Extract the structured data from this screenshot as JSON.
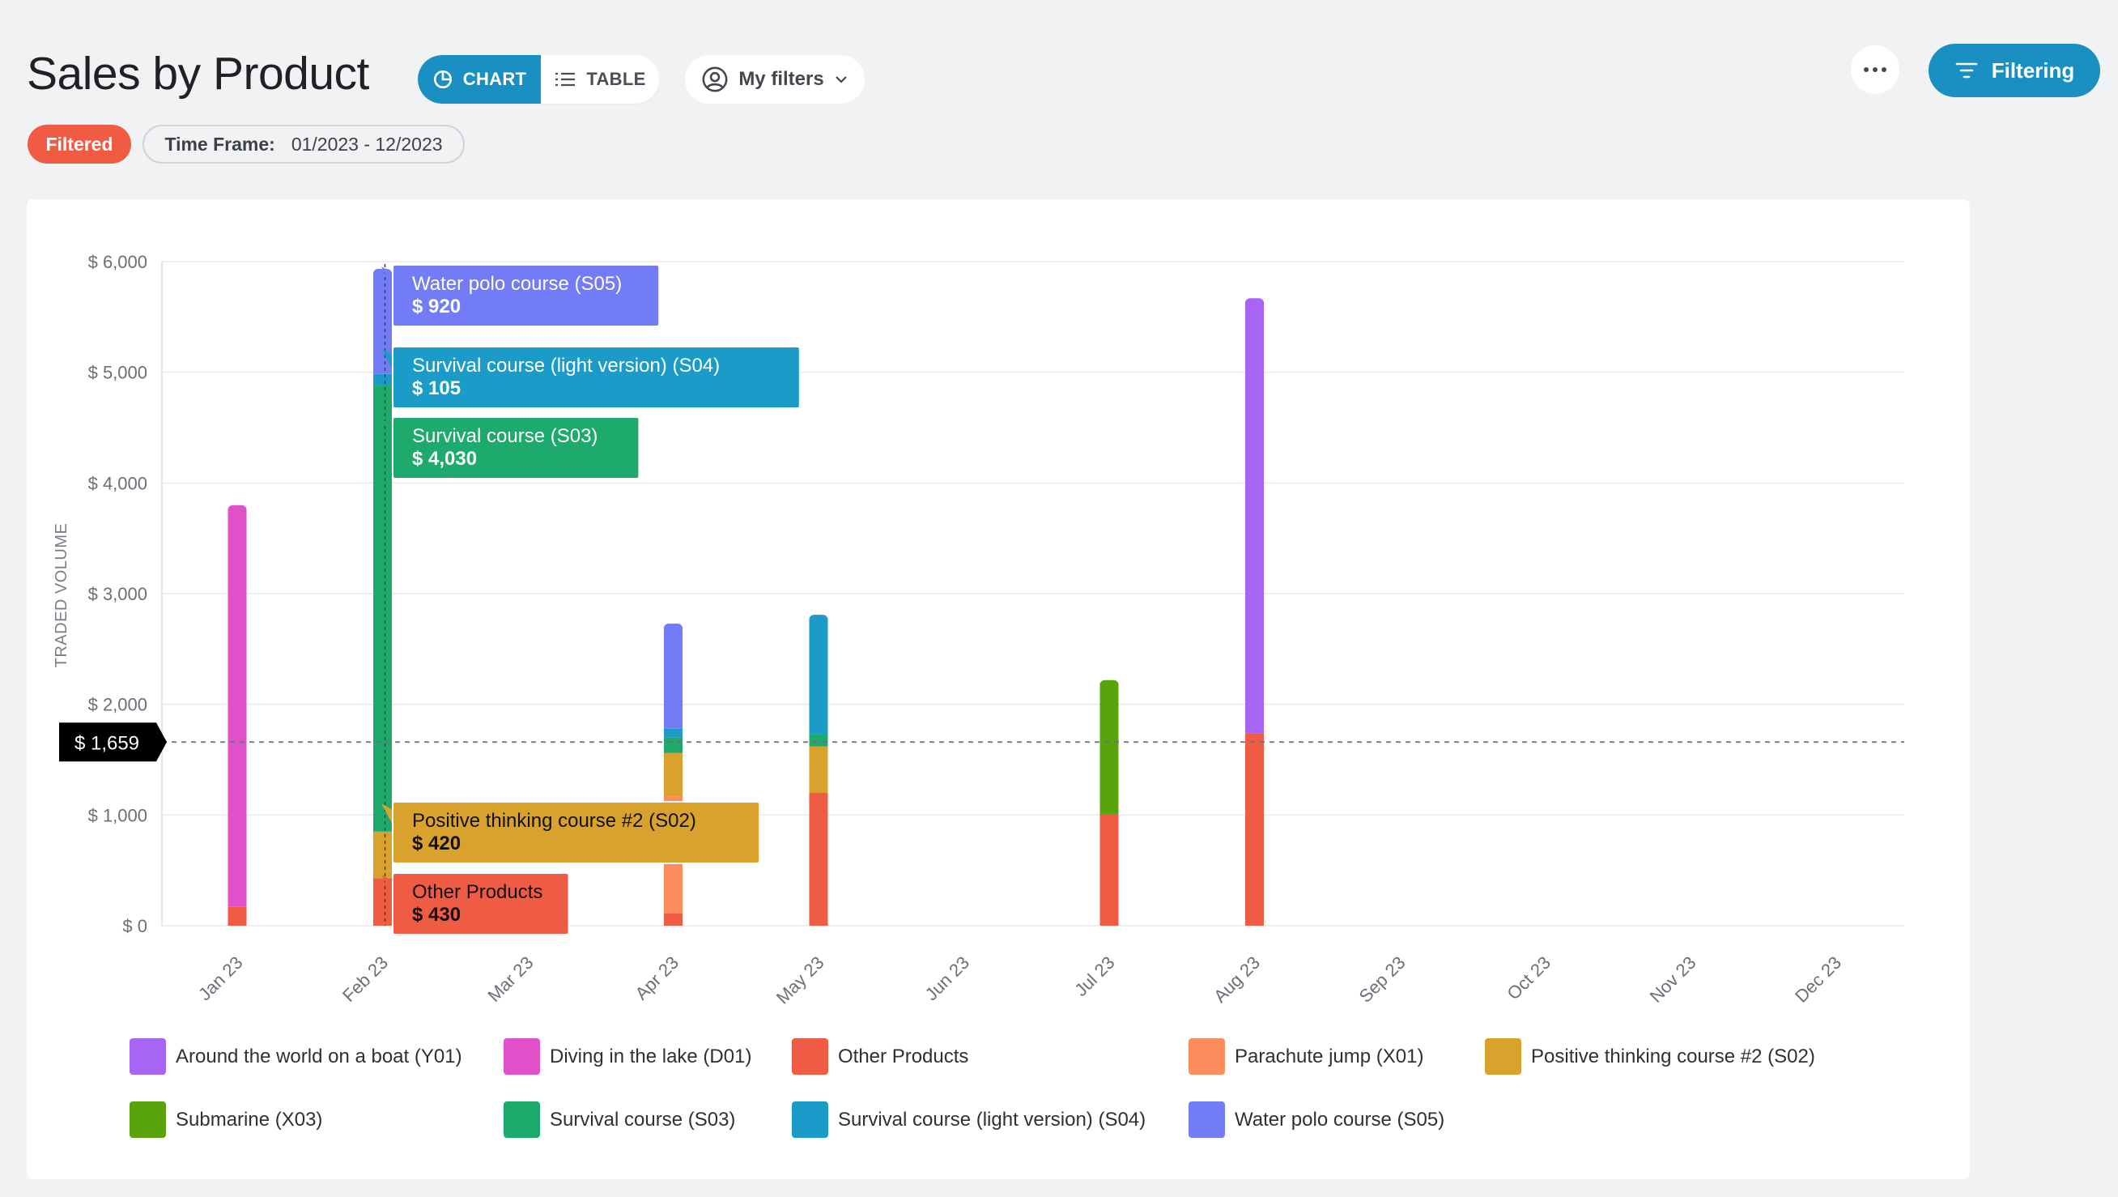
{
  "header": {
    "title": "Sales by Product",
    "chart_label": "CHART",
    "table_label": "TABLE",
    "filters_label": "My filters",
    "filtering_label": "Filtering"
  },
  "badges": {
    "filtered": "Filtered",
    "timeframe_label": "Time Frame:",
    "timeframe_value": "01/2023 - 12/2023"
  },
  "colors": {
    "accent": "#1a8fc1",
    "filtered_badge": "#ef5b43"
  },
  "chart_data": {
    "type": "bar",
    "stacked": true,
    "ylabel": "TRADED VOLUME",
    "ylim": [
      0,
      6000
    ],
    "yticks": [
      "$ 0",
      "$ 1,000",
      "$ 2,000",
      "$ 3,000",
      "$ 4,000",
      "$ 5,000",
      "$ 6,000"
    ],
    "categories": [
      "Jan 23",
      "Feb 23",
      "Mar 23",
      "Apr 23",
      "May 23",
      "Jun 23",
      "Jul 23",
      "Aug 23",
      "Sep 23",
      "Oct 23",
      "Nov 23",
      "Dec 23"
    ],
    "series": [
      {
        "name": "Other Products",
        "color": "#ef5b43",
        "values": [
          170,
          430,
          0,
          110,
          1200,
          0,
          1010,
          1740,
          0,
          0,
          0,
          0
        ]
      },
      {
        "name": "Parachute jump (X01)",
        "color": "#fd8d5c",
        "values": [
          0,
          0,
          0,
          1060,
          0,
          0,
          0,
          0,
          0,
          0,
          0,
          0
        ]
      },
      {
        "name": "Positive thinking course #2 (S02)",
        "color": "#d9a22c",
        "values": [
          0,
          420,
          0,
          390,
          420,
          0,
          0,
          0,
          0,
          0,
          0,
          0
        ]
      },
      {
        "name": "Diving in the lake (D01)",
        "color": "#e050c8",
        "values": [
          3600,
          0,
          0,
          0,
          0,
          0,
          0,
          0,
          0,
          0,
          0,
          0
        ]
      },
      {
        "name": "Submarine (X03)",
        "color": "#59a30c",
        "values": [
          0,
          0,
          0,
          0,
          0,
          0,
          1180,
          0,
          0,
          0,
          0,
          0
        ]
      },
      {
        "name": "Survival course (S03)",
        "color": "#1daa6c",
        "values": [
          0,
          4030,
          0,
          140,
          110,
          0,
          0,
          0,
          0,
          0,
          0,
          0
        ]
      },
      {
        "name": "Survival course (light version) (S04)",
        "color": "#1b9bc8",
        "values": [
          0,
          105,
          0,
          80,
          1050,
          0,
          0,
          0,
          0,
          0,
          0,
          0
        ]
      },
      {
        "name": "Water polo course (S05)",
        "color": "#727cf7",
        "values": [
          0,
          920,
          0,
          920,
          0,
          0,
          0,
          0,
          0,
          0,
          0,
          0
        ]
      },
      {
        "name": "Around the world on a boat (Y01)",
        "color": "#a865f5",
        "values": [
          0,
          0,
          0,
          0,
          0,
          0,
          0,
          3900,
          0,
          0,
          0,
          0
        ]
      }
    ],
    "legend_order": [
      "Around the world on a boat (Y01)",
      "Diving in the lake (D01)",
      "Other Products",
      "Parachute jump (X01)",
      "Positive thinking course #2 (S02)",
      "Submarine (X03)",
      "Survival course (S03)",
      "Survival course (light version) (S04)",
      "Water polo course (S05)"
    ],
    "legend_placement": "bottom",
    "average_line": {
      "value": 1659,
      "label": "$ 1,659"
    },
    "tooltips": [
      {
        "series": "Water polo course (S05)",
        "label": "Water polo course (S05)",
        "value": "$ 920"
      },
      {
        "series": "Survival course (light version) (S04)",
        "label": "Survival course (light version) (S04)",
        "value": "$ 105"
      },
      {
        "series": "Survival course (S03)",
        "label": "Survival course (S03)",
        "value": "$ 4,030"
      },
      {
        "series": "Positive thinking course #2 (S02)",
        "label": "Positive thinking course #2 (S02)",
        "value": "$ 420"
      },
      {
        "series": "Other Products",
        "label": "Other Products",
        "value": "$ 430"
      }
    ],
    "tooltip_category": "Feb 23",
    "grid": true
  }
}
